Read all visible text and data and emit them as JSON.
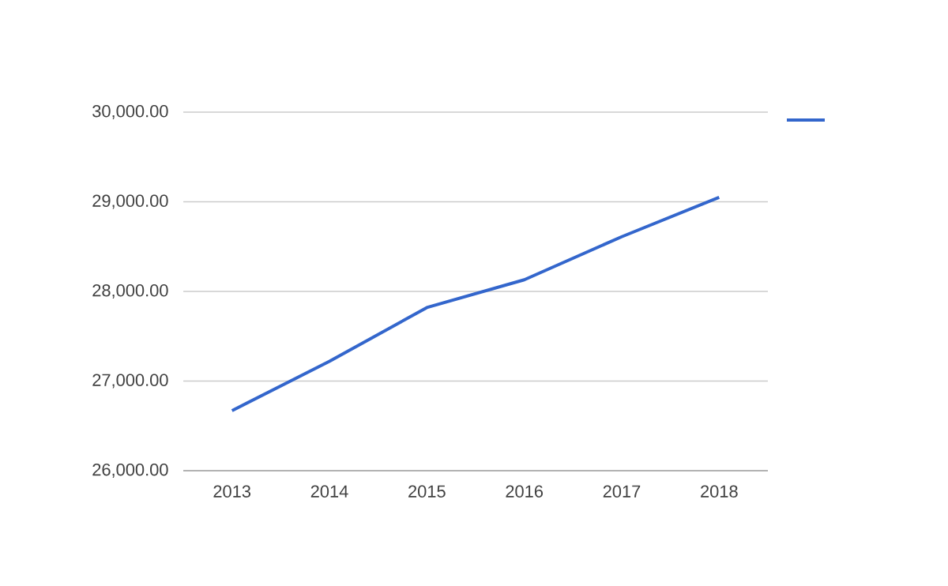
{
  "chart_data": {
    "type": "line",
    "categories": [
      "2013",
      "2014",
      "2015",
      "2016",
      "2017",
      "2018"
    ],
    "series": [
      {
        "color": "#3366cc",
        "values": [
          26670,
          27220,
          27820,
          28130,
          28610,
          29050
        ]
      }
    ],
    "ylim": [
      26000,
      30000
    ],
    "yticks": [
      {
        "value": 26000,
        "label": "26,000.00"
      },
      {
        "value": 27000,
        "label": "27,000.00"
      },
      {
        "value": 28000,
        "label": "28,000.00"
      },
      {
        "value": 29000,
        "label": "29,000.00"
      },
      {
        "value": 30000,
        "label": "30,000.00"
      }
    ],
    "grid": "y",
    "marker": "none",
    "line_style": "solid"
  }
}
